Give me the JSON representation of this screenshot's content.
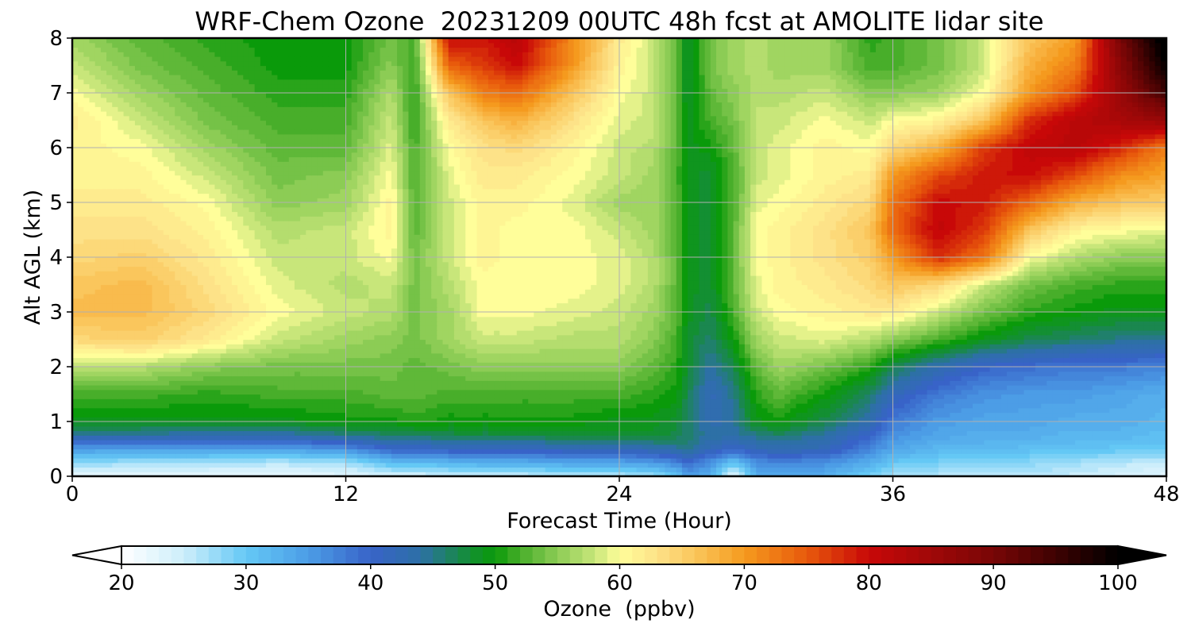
{
  "chart_data": {
    "type": "heatmap",
    "title": "WRF-Chem Ozone  20231209 00UTC 48h fcst at AMOLITE lidar site",
    "xlabel": "Forecast Time (Hour)",
    "ylabel": "Alt AGL (km)",
    "xlim": [
      0,
      48
    ],
    "ylim": [
      0,
      8
    ],
    "x_ticks": [
      0,
      12,
      24,
      36,
      48
    ],
    "y_ticks": [
      0,
      1,
      2,
      3,
      4,
      5,
      6,
      7,
      8
    ],
    "grid": true,
    "colorbar": {
      "label": "Ozone  (ppbv)",
      "orientation": "horizontal",
      "position": "bottom",
      "min": 20,
      "max": 100,
      "ticks": [
        20,
        30,
        40,
        50,
        60,
        70,
        80,
        90,
        100
      ],
      "extend": "both",
      "stops": [
        {
          "value": 20,
          "color": "#ffffff"
        },
        {
          "value": 25,
          "color": "#cdeefb"
        },
        {
          "value": 30,
          "color": "#64c8f5"
        },
        {
          "value": 35,
          "color": "#4c9de6"
        },
        {
          "value": 40,
          "color": "#3863c8"
        },
        {
          "value": 44,
          "color": "#2d70a6"
        },
        {
          "value": 48,
          "color": "#138f32"
        },
        {
          "value": 50,
          "color": "#0a9a0a"
        },
        {
          "value": 52,
          "color": "#48ae2a"
        },
        {
          "value": 55,
          "color": "#8ccc55"
        },
        {
          "value": 58,
          "color": "#c8e67a"
        },
        {
          "value": 60,
          "color": "#fffe9a"
        },
        {
          "value": 63,
          "color": "#fde288"
        },
        {
          "value": 66,
          "color": "#fac65c"
        },
        {
          "value": 70,
          "color": "#f59a1e"
        },
        {
          "value": 75,
          "color": "#e85a0c"
        },
        {
          "value": 80,
          "color": "#c80808"
        },
        {
          "value": 85,
          "color": "#a00808"
        },
        {
          "value": 90,
          "color": "#780606"
        },
        {
          "value": 95,
          "color": "#3e0202"
        },
        {
          "value": 100,
          "color": "#000000"
        }
      ]
    },
    "x": [
      0,
      3,
      6,
      9,
      12,
      14,
      15,
      16.5,
      18,
      19.5,
      22,
      24,
      25.5,
      26.5,
      27,
      28,
      29,
      30,
      31,
      33,
      35,
      36,
      38,
      40,
      42,
      44,
      46,
      48
    ],
    "y": [
      0,
      0.25,
      0.5,
      0.75,
      1,
      1.5,
      2,
      2.5,
      3,
      3.5,
      4,
      4.5,
      5,
      5.5,
      6,
      6.5,
      7,
      7.5,
      8
    ],
    "z": [
      [
        22,
        22,
        22,
        22,
        23,
        24,
        24,
        25,
        25,
        25,
        26,
        26,
        27,
        30,
        35,
        33,
        22,
        33,
        34,
        33,
        29,
        27,
        26,
        26,
        26,
        25,
        24,
        23
      ],
      [
        28,
        27,
        27,
        26,
        27,
        31,
        31,
        32,
        33,
        33,
        34,
        34,
        35,
        37,
        39,
        36,
        30,
        36,
        37,
        36,
        33,
        30,
        29,
        28,
        28,
        27,
        26,
        25
      ],
      [
        35,
        34,
        34,
        34,
        36,
        40,
        40,
        41,
        41,
        41,
        42,
        42,
        43,
        44,
        45,
        42,
        40,
        42,
        43,
        42,
        37,
        34,
        32,
        32,
        31,
        31,
        30,
        30
      ],
      [
        44,
        44,
        43,
        43,
        45,
        46,
        46,
        47,
        47,
        47,
        48,
        48,
        48,
        47,
        46,
        44,
        44,
        45,
        46,
        44,
        40,
        36,
        34,
        33,
        33,
        32,
        32,
        31
      ],
      [
        49,
        49,
        49,
        49,
        50,
        50,
        51,
        50,
        50,
        50,
        50,
        49,
        49,
        48,
        46,
        43,
        44,
        49,
        50,
        47,
        43,
        38,
        35,
        34,
        34,
        33,
        33,
        32
      ],
      [
        52,
        52,
        51,
        52,
        52,
        53,
        53,
        52,
        52,
        52,
        52,
        52,
        51,
        50,
        47,
        42,
        45,
        51,
        53,
        50,
        46,
        42,
        38,
        36,
        35,
        35,
        34,
        33
      ],
      [
        57,
        57,
        55,
        54,
        54,
        54,
        53,
        54,
        55,
        55,
        55,
        55,
        53,
        51,
        48,
        44,
        47,
        53,
        56,
        54,
        51,
        47,
        43,
        40,
        39,
        38,
        38,
        37
      ],
      [
        64,
        65,
        62,
        58,
        56,
        55,
        54,
        56,
        58,
        58,
        57,
        57,
        55,
        52,
        48,
        46,
        50,
        56,
        58,
        59,
        57,
        55,
        52,
        49,
        47,
        46,
        45,
        45
      ],
      [
        67,
        67,
        64,
        60,
        58,
        57,
        54,
        56,
        60,
        60,
        59,
        58,
        56,
        53,
        49,
        47,
        52,
        58,
        60,
        61,
        62,
        62,
        58,
        54,
        51,
        50,
        49,
        49
      ],
      [
        66,
        67,
        63,
        59,
        57,
        58,
        54,
        57,
        60,
        60,
        60,
        59,
        57,
        53,
        49,
        48,
        53,
        59,
        61,
        62,
        64,
        66,
        64,
        58,
        54,
        52,
        51,
        51
      ],
      [
        64,
        65,
        62,
        58,
        58,
        60,
        54,
        58,
        61,
        60,
        60,
        59,
        57,
        53,
        49,
        48,
        53,
        60,
        61,
        63,
        65,
        70,
        78,
        73,
        60,
        57,
        55,
        55
      ],
      [
        63,
        63,
        61,
        57,
        58,
        61,
        53,
        58,
        61,
        60,
        60,
        58,
        56,
        53,
        49,
        48,
        53,
        60,
        61,
        63,
        66,
        74,
        81,
        77,
        66,
        61,
        60,
        59
      ],
      [
        62,
        62,
        60,
        55,
        56,
        61,
        53,
        58,
        61,
        61,
        59,
        56,
        56,
        53,
        49,
        48,
        52,
        59,
        60,
        62,
        64,
        73,
        80,
        79,
        74,
        68,
        66,
        65
      ],
      [
        61,
        61,
        58,
        54,
        55,
        60,
        52,
        59,
        62,
        62,
        60,
        58,
        56,
        52,
        49,
        48,
        52,
        58,
        59,
        61,
        62,
        70,
        76,
        79,
        80,
        76,
        71,
        69
      ],
      [
        61,
        60,
        56,
        53,
        53,
        59,
        52,
        60,
        63,
        64,
        61,
        58,
        57,
        53,
        49,
        50,
        53,
        58,
        59,
        61,
        60,
        64,
        68,
        77,
        81,
        82,
        78,
        72
      ],
      [
        62,
        58,
        54,
        52,
        52,
        58,
        51,
        62,
        66,
        68,
        63,
        59,
        58,
        53,
        49,
        52,
        54,
        58,
        58,
        60,
        58,
        60,
        61,
        66,
        78,
        82,
        84,
        86
      ],
      [
        60,
        56,
        53,
        51,
        51,
        57,
        51,
        66,
        72,
        74,
        66,
        60,
        58,
        53,
        48,
        53,
        55,
        57,
        57,
        58,
        55,
        55,
        56,
        60,
        70,
        76,
        86,
        95
      ],
      [
        58,
        54,
        52,
        50,
        50,
        55,
        51,
        74,
        77,
        80,
        70,
        61,
        58,
        53,
        48,
        54,
        56,
        57,
        56,
        56,
        52,
        52,
        54,
        58,
        68,
        72,
        88,
        100
      ],
      [
        56,
        53,
        51,
        50,
        50,
        54,
        52,
        80,
        79,
        82,
        71,
        62,
        58,
        53,
        48,
        54,
        56,
        57,
        56,
        56,
        51,
        52,
        54,
        58,
        66,
        70,
        90,
        102
      ]
    ]
  }
}
